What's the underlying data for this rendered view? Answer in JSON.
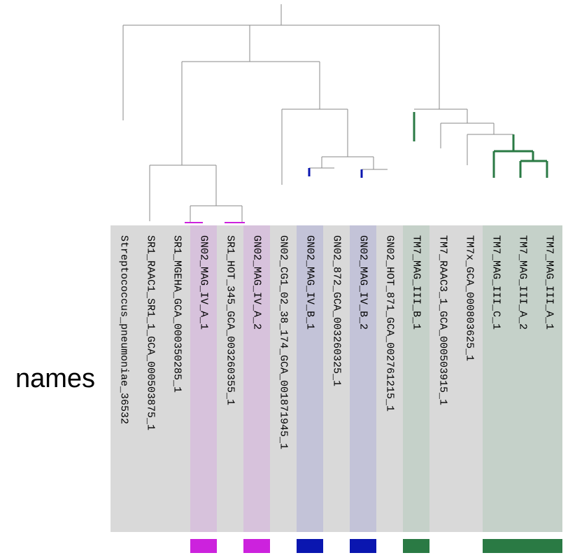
{
  "row_label": "names",
  "colors": {
    "background": "#d9d9d9",
    "branch": "#8a8a8a",
    "magenta": "#cc22dd",
    "blue": "#0a16b0",
    "green": "#2a7a44",
    "magenta_shade": "#d7c2dc",
    "blue_shade": "#c3c3d8",
    "green_shade": "#c5d1c9"
  },
  "leaves": [
    {
      "name": "Streptococcus_pneumoniae_36532",
      "group": null
    },
    {
      "name": "SR1_RAAC1_SR1_1_GCA_000503875_1",
      "group": null
    },
    {
      "name": "SR1_MGEHA_GCA_000350285_1",
      "group": null
    },
    {
      "name": "GN02_MAG_IV_A_1",
      "group": "magenta"
    },
    {
      "name": "SR1_HOT_345_GCA_003260355_1",
      "group": null
    },
    {
      "name": "GN02_MAG_IV_A_2",
      "group": "magenta"
    },
    {
      "name": "GN02_CG1_02_38_174_GCA_001871945_1",
      "group": null
    },
    {
      "name": "GN02_MAG_IV_B_1",
      "group": "blue"
    },
    {
      "name": "GN02_872_GCA_003260325_1",
      "group": null
    },
    {
      "name": "GN02_MAG_IV_B_2",
      "group": "blue"
    },
    {
      "name": "GN02_HOT_871_GCA_002761215_1",
      "group": null
    },
    {
      "name": "TM7_MAG_III_B_1",
      "group": "green"
    },
    {
      "name": "TM7_RAAC3_1_GCA_000503915_1",
      "group": null
    },
    {
      "name": "TM7x_GCA_000803625_1",
      "group": null
    },
    {
      "name": "TM7_MAG_III_C_1",
      "group": "green"
    },
    {
      "name": "TM7_MAG_III_A_2",
      "group": "green"
    },
    {
      "name": "TM7_MAG_III_A_1",
      "group": "green"
    }
  ]
}
